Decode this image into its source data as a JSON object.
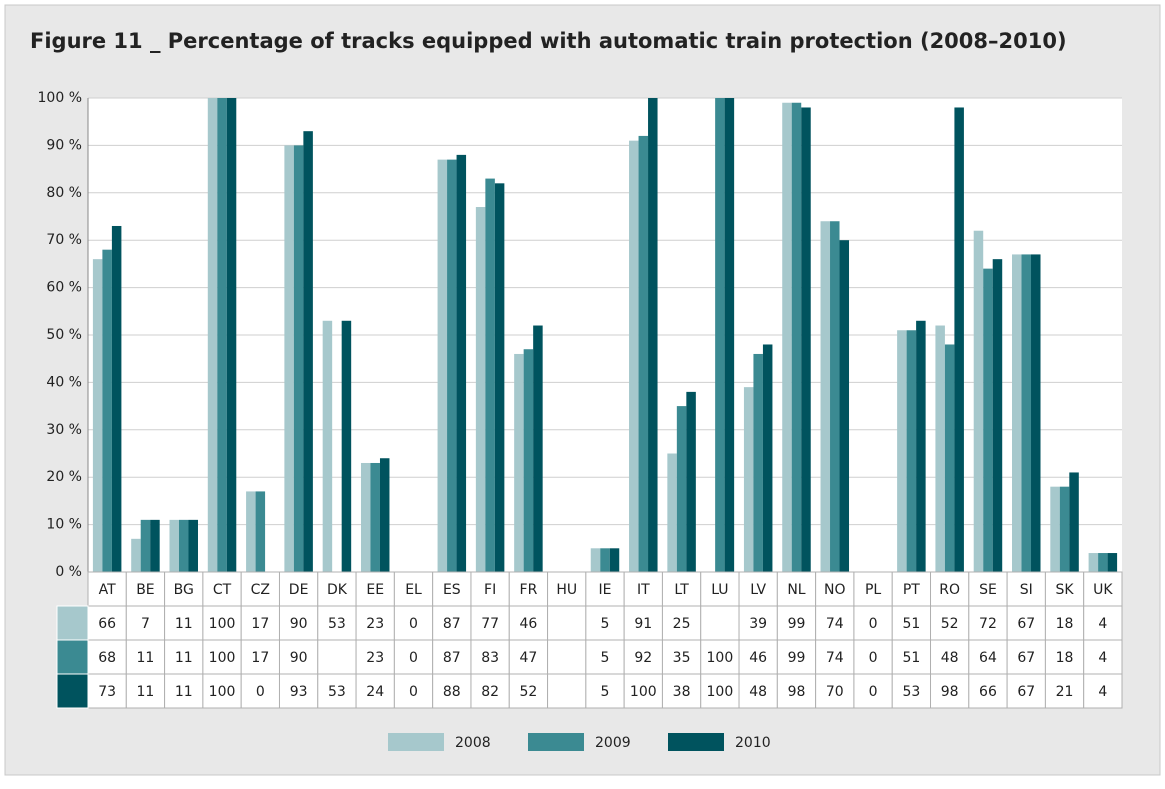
{
  "chart_data": {
    "type": "bar",
    "title": "Figure 11 _ Percentage of tracks equipped with automatic train protection (2008–2010)",
    "categories": [
      "AT",
      "BE",
      "BG",
      "CT",
      "CZ",
      "DE",
      "DK",
      "EE",
      "EL",
      "ES",
      "FI",
      "FR",
      "HU",
      "IE",
      "IT",
      "LT",
      "LU",
      "LV",
      "NL",
      "NO",
      "PL",
      "PT",
      "RO",
      "SE",
      "SI",
      "SK",
      "UK"
    ],
    "series": [
      {
        "name": "2008",
        "color": "#a6c8cc",
        "values": [
          66,
          7,
          11,
          100,
          17,
          90,
          53,
          23,
          0,
          87,
          77,
          46,
          null,
          5,
          91,
          25,
          null,
          39,
          99,
          74,
          0,
          51,
          52,
          72,
          67,
          18,
          4
        ]
      },
      {
        "name": "2009",
        "color": "#3b8a92",
        "values": [
          68,
          11,
          11,
          100,
          17,
          90,
          null,
          23,
          0,
          87,
          83,
          47,
          null,
          5,
          92,
          35,
          100,
          46,
          99,
          74,
          0,
          51,
          48,
          64,
          67,
          18,
          4
        ]
      },
      {
        "name": "2010",
        "color": "#00535e",
        "values": [
          73,
          11,
          11,
          100,
          0,
          93,
          53,
          24,
          0,
          88,
          82,
          52,
          null,
          5,
          100,
          38,
          100,
          48,
          98,
          70,
          0,
          53,
          98,
          66,
          67,
          21,
          4
        ]
      }
    ],
    "ylim": [
      0,
      100
    ],
    "yticks": [
      {
        "value": 0,
        "label": "0 %"
      },
      {
        "value": 10,
        "label": "10 %"
      },
      {
        "value": 20,
        "label": "20 %"
      },
      {
        "value": 30,
        "label": "30 %"
      },
      {
        "value": 40,
        "label": "40 %"
      },
      {
        "value": 50,
        "label": "50 %"
      },
      {
        "value": 60,
        "label": "60 %"
      },
      {
        "value": 70,
        "label": "70 %"
      },
      {
        "value": 80,
        "label": "80 %"
      },
      {
        "value": 90,
        "label": "90 %"
      },
      {
        "value": 100,
        "label": "100 %"
      }
    ],
    "grid": true
  }
}
